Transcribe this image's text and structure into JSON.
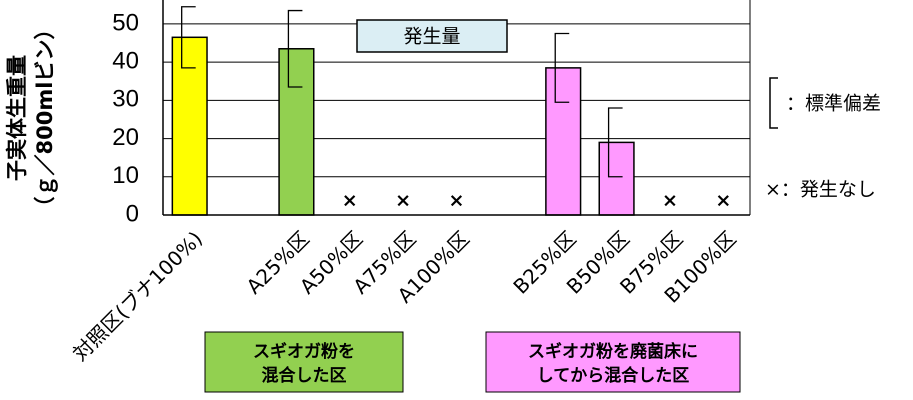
{
  "chart_data": {
    "type": "bar",
    "y_label": [
      "子実体生重量",
      "（ｇ／800mlビン）"
    ],
    "categories": [
      "対照区(ブナ100%)",
      null,
      "A25%区",
      "A50%区",
      "A75%区",
      "A100%区",
      null,
      "B25%区",
      "B50%区",
      "B75%区",
      "B100%区"
    ],
    "values": [
      46.5,
      null,
      43.5,
      null,
      null,
      null,
      null,
      38.5,
      19,
      null,
      null
    ],
    "errors": [
      8,
      null,
      10,
      null,
      null,
      null,
      null,
      9,
      9,
      null,
      null
    ],
    "colors": [
      "#ffff00",
      null,
      "#92d050",
      null,
      null,
      null,
      null,
      "#ff99ff",
      "#ff99ff",
      null,
      null
    ],
    "markers": [
      null,
      null,
      null,
      "×",
      "×",
      "×",
      null,
      null,
      null,
      "×",
      "×"
    ],
    "ylim": [
      0,
      56
    ],
    "yticks": [
      0,
      10,
      20,
      30,
      40,
      50
    ],
    "grid": true,
    "annotations": {
      "title_box": "発生量",
      "error_legend": "：標準偏差",
      "marker_legend": "×：発生なし",
      "groups": [
        [
          "スギオガ粉を",
          "混合した区"
        ],
        [
          "スギオガ粉を廃菌床に",
          "してから混合した区"
        ]
      ]
    }
  }
}
